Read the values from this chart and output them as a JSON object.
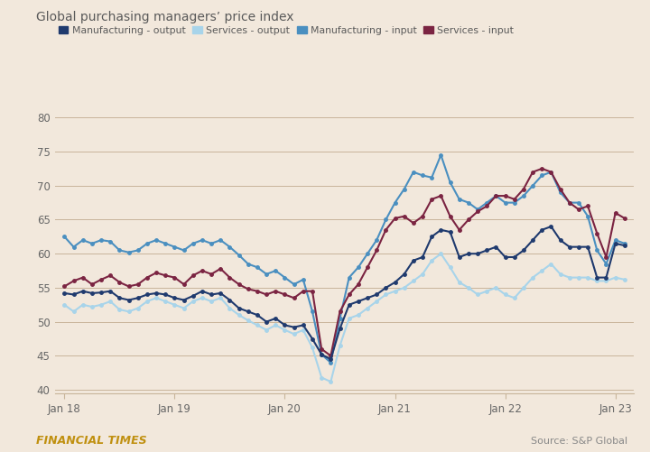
{
  "title": "Global purchasing managers’ price index",
  "background_color": "#f2e8dc",
  "grid_color": "#c8b49a",
  "title_color": "#5a5a5a",
  "ft_label": "FINANCIAL TIMES",
  "source_label": "Source: S&P Global",
  "ylim": [
    39.5,
    82
  ],
  "yticks": [
    40,
    45,
    50,
    55,
    60,
    65,
    70,
    75,
    80
  ],
  "colors": {
    "mfg_output": "#1f3a6e",
    "svc_output": "#a8d4ea",
    "mfg_input": "#4a8fc0",
    "svc_input": "#7b2442"
  },
  "legend_labels": [
    "Manufacturing - output",
    "Services - output",
    "Manufacturing - input",
    "Services - input"
  ],
  "x_tick_labels": [
    "Jan 18",
    "Jan 19",
    "Jan 20",
    "Jan 21",
    "Jan 22",
    "Jan 23"
  ],
  "x_tick_positions": [
    0,
    12,
    24,
    36,
    48,
    60
  ],
  "mfg_output": [
    54.2,
    54.0,
    54.5,
    54.2,
    54.3,
    54.5,
    53.5,
    53.2,
    53.5,
    54.0,
    54.2,
    54.0,
    53.5,
    53.2,
    53.8,
    54.5,
    54.0,
    54.2,
    53.2,
    52.0,
    51.5,
    51.0,
    50.0,
    50.5,
    49.5,
    49.2,
    49.5,
    47.5,
    45.2,
    44.5,
    49.0,
    52.5,
    53.0,
    53.5,
    54.0,
    55.0,
    55.8,
    57.0,
    59.0,
    59.5,
    62.5,
    63.5,
    63.2,
    59.5,
    60.0,
    60.0,
    60.5,
    61.0,
    59.5,
    59.5,
    60.5,
    62.0,
    63.5,
    64.0,
    62.0,
    61.0,
    61.0,
    61.0,
    56.5,
    56.5,
    61.5,
    61.2
  ],
  "svc_output": [
    52.5,
    51.5,
    52.5,
    52.2,
    52.5,
    53.0,
    51.8,
    51.5,
    52.0,
    53.0,
    53.5,
    53.0,
    52.5,
    52.0,
    53.0,
    53.5,
    53.0,
    53.5,
    52.0,
    51.0,
    50.2,
    49.5,
    48.8,
    49.5,
    48.8,
    48.2,
    48.8,
    46.2,
    41.8,
    41.2,
    46.5,
    50.5,
    51.0,
    52.0,
    53.0,
    54.0,
    54.5,
    55.0,
    56.0,
    57.0,
    59.0,
    60.0,
    58.0,
    55.8,
    55.0,
    54.0,
    54.5,
    55.0,
    54.0,
    53.5,
    55.0,
    56.5,
    57.5,
    58.5,
    57.0,
    56.5,
    56.5,
    56.5,
    56.0,
    56.0,
    56.5,
    56.2
  ],
  "mfg_input": [
    62.5,
    61.0,
    62.0,
    61.5,
    62.0,
    61.8,
    60.5,
    60.2,
    60.5,
    61.5,
    62.0,
    61.5,
    61.0,
    60.5,
    61.5,
    62.0,
    61.5,
    62.0,
    61.0,
    59.8,
    58.5,
    58.0,
    57.0,
    57.5,
    56.5,
    55.5,
    56.2,
    51.5,
    45.2,
    44.0,
    50.5,
    56.5,
    58.0,
    60.0,
    62.0,
    65.0,
    67.5,
    69.5,
    72.0,
    71.5,
    71.2,
    74.5,
    70.5,
    68.0,
    67.5,
    66.5,
    67.5,
    68.5,
    67.5,
    67.5,
    68.5,
    70.0,
    71.5,
    72.0,
    69.0,
    67.5,
    67.5,
    65.5,
    60.5,
    58.5,
    62.0,
    61.5
  ],
  "svc_input": [
    55.2,
    56.0,
    56.5,
    55.5,
    56.2,
    56.8,
    55.8,
    55.2,
    55.5,
    56.5,
    57.2,
    56.8,
    56.5,
    55.5,
    56.8,
    57.5,
    57.0,
    57.8,
    56.5,
    55.5,
    54.8,
    54.5,
    54.0,
    54.5,
    54.0,
    53.5,
    54.5,
    54.5,
    46.0,
    45.0,
    51.5,
    54.0,
    55.5,
    58.0,
    60.5,
    63.5,
    65.2,
    65.5,
    64.5,
    65.5,
    68.0,
    68.5,
    65.5,
    63.5,
    65.0,
    66.2,
    67.0,
    68.5,
    68.5,
    68.0,
    69.5,
    72.0,
    72.5,
    72.0,
    69.5,
    67.5,
    66.5,
    67.0,
    63.0,
    59.5,
    66.0,
    65.2
  ]
}
